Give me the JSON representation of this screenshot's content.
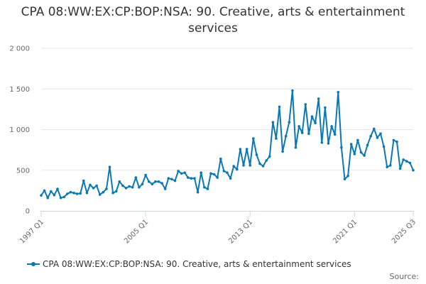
{
  "chart_data": {
    "type": "line",
    "title": "CPA 08:WW:EX:CP:BOP:NSA: 90. Creative, arts & entertainment services",
    "xlabel": "",
    "ylabel": "",
    "ylim": [
      0,
      2000
    ],
    "yticks": [
      0,
      500,
      1000,
      1500,
      2000
    ],
    "ytick_labels": [
      "0",
      "500",
      "1 000",
      "1 500",
      "2 000"
    ],
    "xtick_labels": [
      "1997 Q1",
      "2005 Q1",
      "2013 Q1",
      "2021 Q1",
      "2025 Q3"
    ],
    "xtick_positions": [
      "1997 Q1",
      "2005 Q1",
      "2013 Q1",
      "2021 Q1",
      "2025 Q3"
    ],
    "grid": "horizontal",
    "legend": "bottom",
    "series": [
      {
        "name": "CPA 08:WW:EX:CP:BOP:NSA: 90. Creative, arts & entertainment services",
        "color": "#0a78b4",
        "x_start": "1997 Q1",
        "x_end": "2025 Q3",
        "values": [
          190,
          250,
          160,
          240,
          195,
          270,
          160,
          170,
          210,
          230,
          220,
          210,
          215,
          370,
          220,
          320,
          280,
          310,
          200,
          230,
          270,
          540,
          220,
          240,
          360,
          310,
          280,
          300,
          290,
          410,
          290,
          330,
          440,
          360,
          330,
          360,
          360,
          340,
          270,
          400,
          390,
          370,
          490,
          460,
          470,
          410,
          400,
          400,
          230,
          470,
          290,
          270,
          460,
          450,
          410,
          640,
          490,
          470,
          400,
          550,
          510,
          760,
          560,
          760,
          560,
          890,
          690,
          580,
          550,
          620,
          670,
          1090,
          890,
          1280,
          730,
          920,
          1090,
          1480,
          780,
          1040,
          960,
          1310,
          950,
          1160,
          1080,
          1380,
          840,
          1270,
          830,
          1040,
          940,
          1460,
          780,
          390,
          430,
          820,
          700,
          870,
          720,
          680,
          810,
          920,
          1010,
          900,
          950,
          790,
          540,
          560,
          870,
          850,
          520,
          630,
          610,
          590,
          500
        ]
      }
    ]
  },
  "legend": {
    "label": "CPA 08:WW:EX:CP:BOP:NSA: 90. Creative, arts & entertainment services"
  },
  "footer": {
    "source_label": "Source:"
  }
}
